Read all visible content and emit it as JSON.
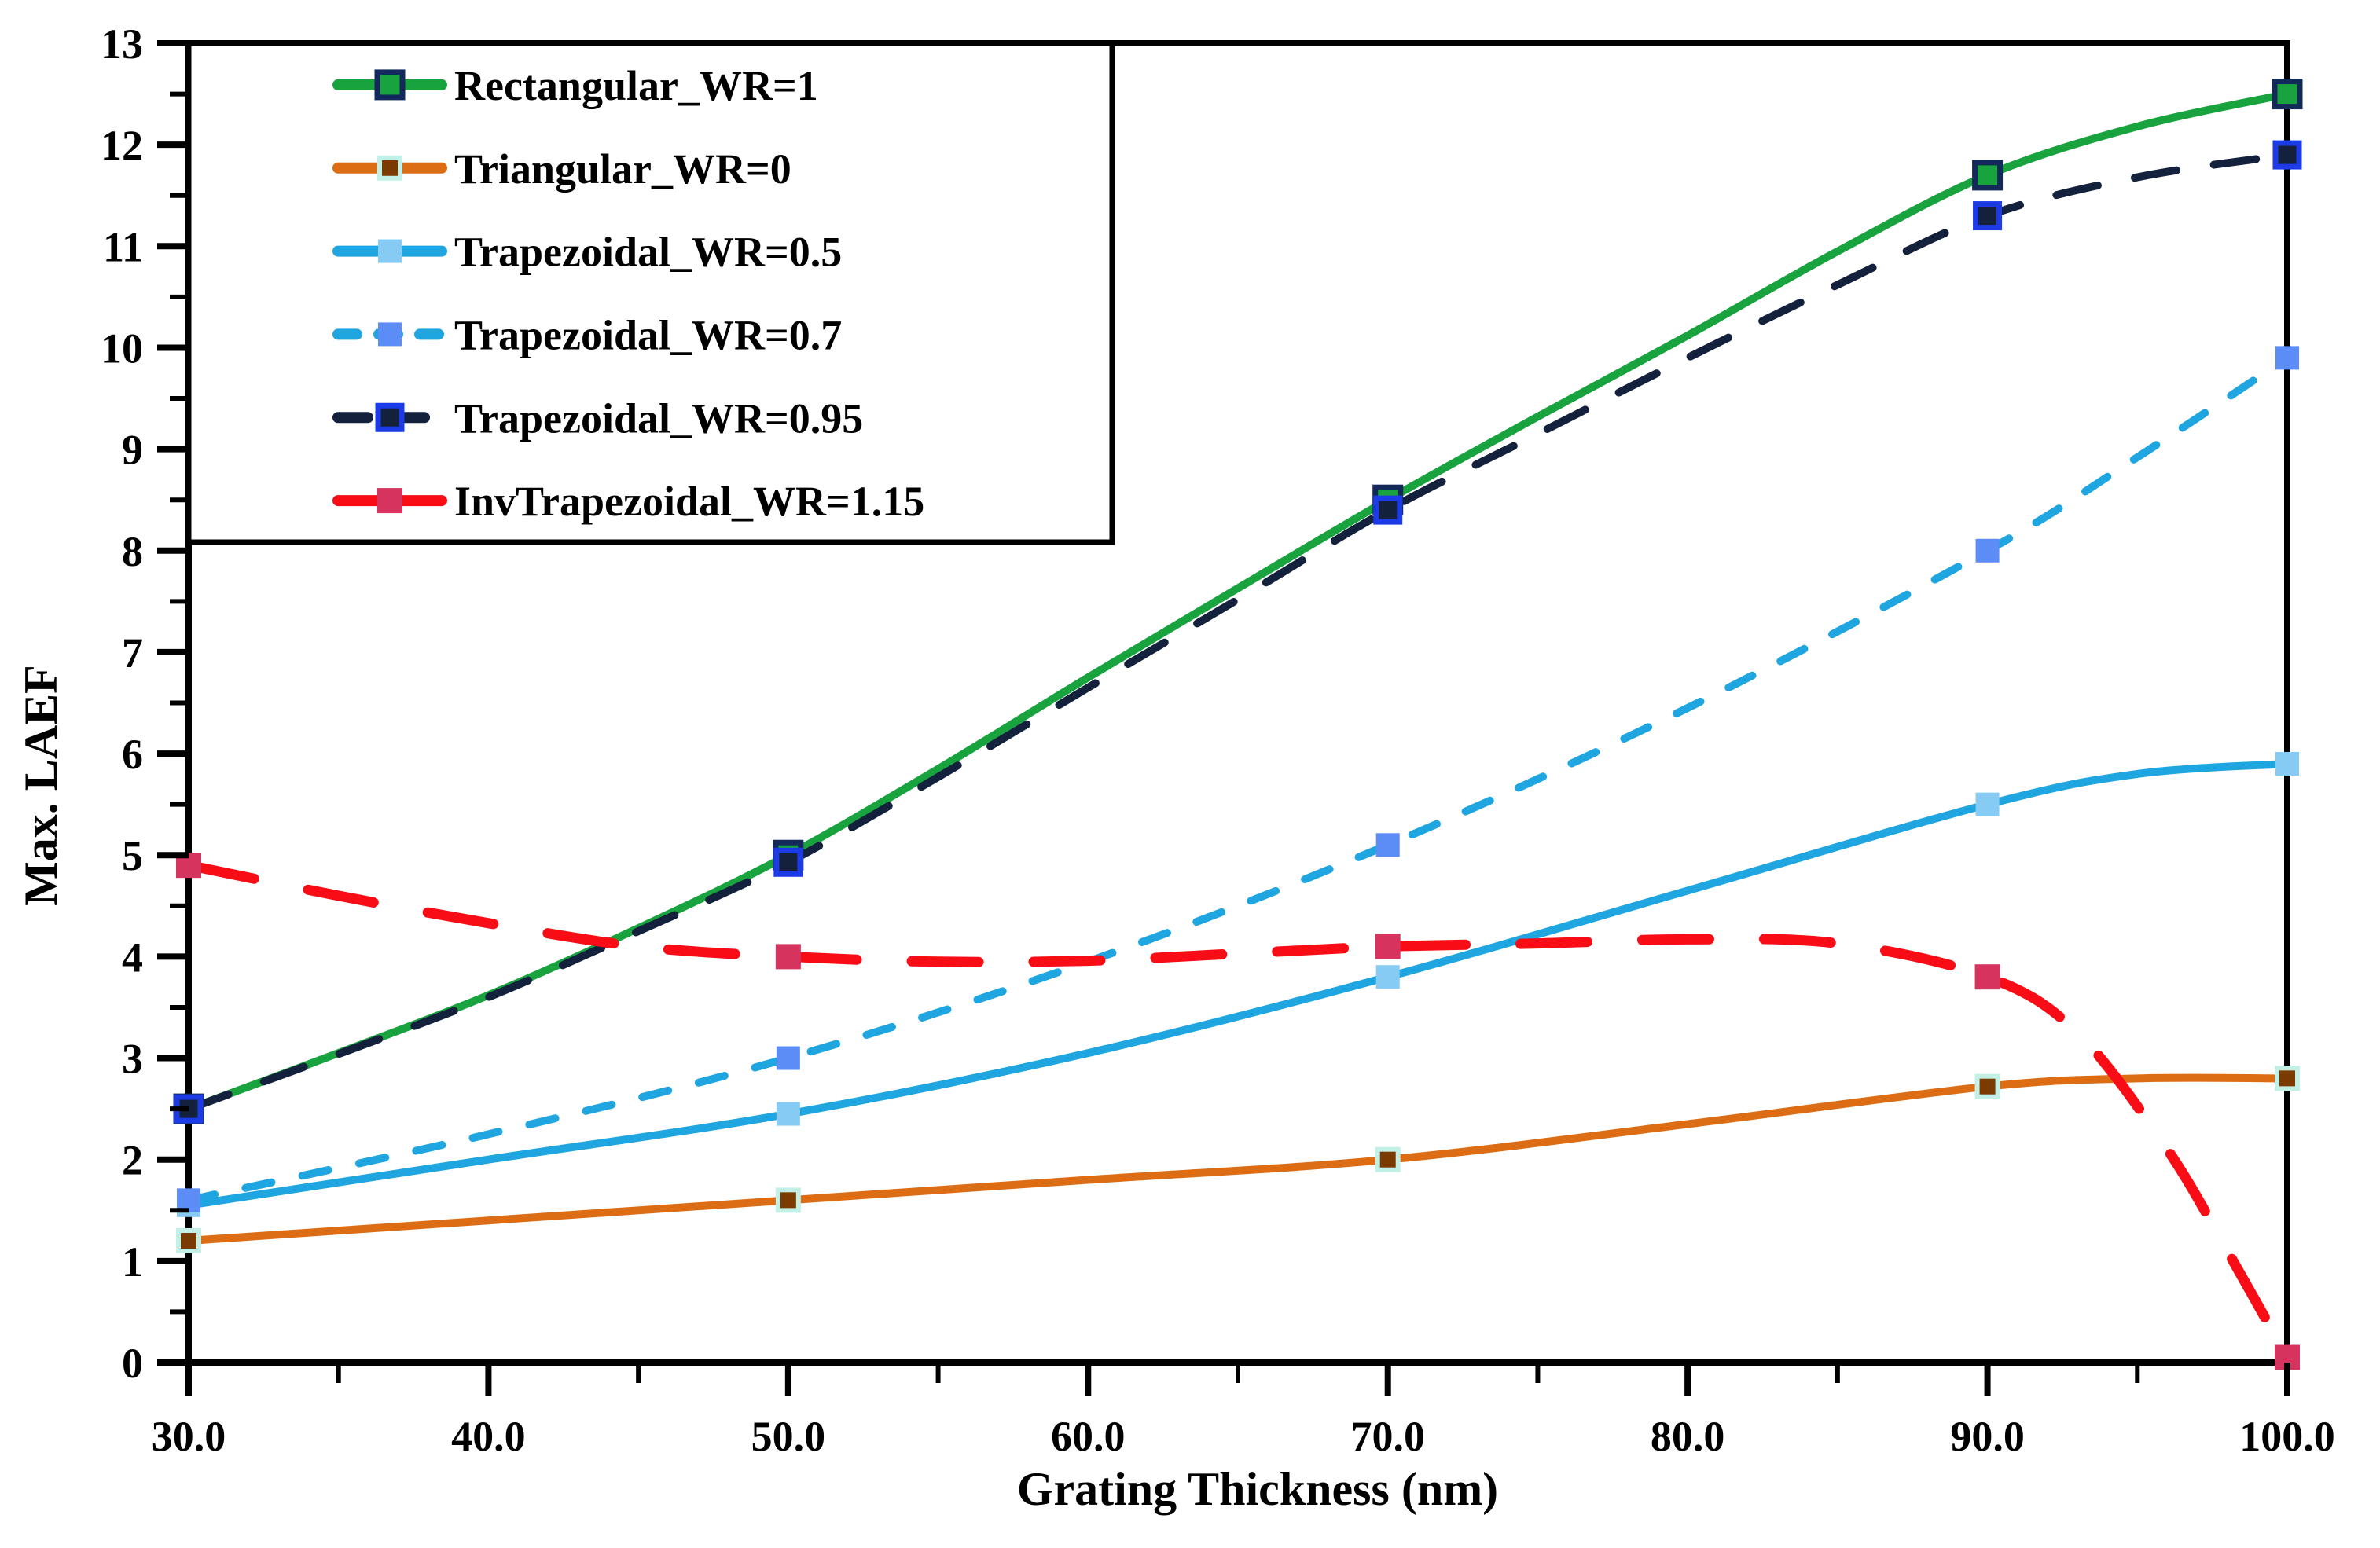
{
  "chart_data": {
    "type": "line",
    "title": "",
    "xlabel": "Grating Thickness  (nm)",
    "ylabel": "Max. LAEF",
    "xlim": [
      30,
      100
    ],
    "ylim": [
      0,
      13
    ],
    "x_ticks": [
      30,
      40,
      50,
      60,
      70,
      80,
      90,
      100
    ],
    "x_tick_labels": [
      "30.0",
      "40.0",
      "50.0",
      "60.0",
      "70.0",
      "80.0",
      "90.0",
      "100.0"
    ],
    "x_minor_ticks": [
      35,
      45,
      55,
      65,
      75,
      85,
      95
    ],
    "y_ticks": [
      0,
      1,
      2,
      3,
      4,
      5,
      6,
      7,
      8,
      9,
      10,
      11,
      12,
      13
    ],
    "y_tick_labels": [
      "0",
      "1",
      "2",
      "3",
      "4",
      "5",
      "6",
      "7",
      "8",
      "9",
      "10",
      "11",
      "12",
      "13"
    ],
    "y_minor_ticks": [
      0.5,
      1.5,
      2.5,
      3.5,
      4.5,
      5.5,
      6.5,
      7.5,
      8.5,
      9.5,
      10.5,
      11.5,
      12.5
    ],
    "grid": false,
    "legend_position": "top-left",
    "background_color": "#ffffff",
    "axis_color": "#000000",
    "series": [
      {
        "name": "Rectangular_WR=1",
        "line_style": "solid",
        "color": "#18a33e",
        "line_width": 10,
        "dash": null,
        "legend_dash": null,
        "marker": {
          "shape": "square",
          "size": 32,
          "fill": "#18a33e",
          "stroke": "#13295a",
          "stroke_width": 7
        },
        "marker_x": [
          30,
          50,
          70,
          90,
          100
        ],
        "points": [
          [
            30,
            2.5
          ],
          [
            35,
            3.05
          ],
          [
            40,
            3.62
          ],
          [
            45,
            4.28
          ],
          [
            50,
            5.0
          ],
          [
            55,
            5.85
          ],
          [
            60,
            6.75
          ],
          [
            65,
            7.63
          ],
          [
            70,
            8.5
          ],
          [
            75,
            9.32
          ],
          [
            80,
            10.12
          ],
          [
            85,
            10.95
          ],
          [
            90,
            11.7
          ],
          [
            95,
            12.18
          ],
          [
            100,
            12.5
          ]
        ]
      },
      {
        "name": "Triangular_WR=0",
        "line_style": "solid",
        "color": "#dd6d15",
        "line_width": 10,
        "dash": null,
        "legend_dash": null,
        "marker": {
          "shape": "square",
          "size": 26,
          "fill": "#7b3a00",
          "stroke": "#c2f0e6",
          "stroke_width": 6
        },
        "marker_x": [
          30,
          50,
          70,
          90,
          100
        ],
        "points": [
          [
            30,
            1.2
          ],
          [
            40,
            1.4
          ],
          [
            50,
            1.6
          ],
          [
            60,
            1.8
          ],
          [
            70,
            2.0
          ],
          [
            80,
            2.35
          ],
          [
            90,
            2.72
          ],
          [
            95,
            2.8
          ],
          [
            100,
            2.8
          ]
        ]
      },
      {
        "name": "Trapezoidal_WR=0.5",
        "line_style": "solid",
        "color": "#1fa6e0",
        "line_width": 10,
        "dash": null,
        "legend_dash": null,
        "marker": {
          "shape": "square",
          "size": 30,
          "fill": "#86cbf3",
          "stroke": "none",
          "stroke_width": 0
        },
        "marker_x": [
          30,
          50,
          70,
          90,
          100
        ],
        "points": [
          [
            30,
            1.55
          ],
          [
            40,
            2.0
          ],
          [
            50,
            2.45
          ],
          [
            60,
            3.05
          ],
          [
            70,
            3.8
          ],
          [
            80,
            4.65
          ],
          [
            90,
            5.5
          ],
          [
            95,
            5.8
          ],
          [
            100,
            5.9
          ]
        ]
      },
      {
        "name": "Trapezoidal_WR=0.7",
        "line_style": "dashed-short",
        "color": "#1fa6e0",
        "line_width": 10,
        "dash": "34 40",
        "legend_dash": "24 28",
        "marker": {
          "shape": "square",
          "size": 30,
          "fill": "#5c8cf5",
          "stroke": "none",
          "stroke_width": 0
        },
        "marker_x": [
          30,
          50,
          70,
          90,
          100
        ],
        "points": [
          [
            30,
            1.6
          ],
          [
            40,
            2.25
          ],
          [
            50,
            3.0
          ],
          [
            60,
            3.95
          ],
          [
            70,
            5.1
          ],
          [
            80,
            6.45
          ],
          [
            90,
            8.0
          ],
          [
            95,
            8.92
          ],
          [
            100,
            9.9
          ]
        ]
      },
      {
        "name": "Trapezoidal_WR=0.95",
        "line_style": "dashed-long",
        "color": "#14213c",
        "line_width": 10,
        "dash": "54 48",
        "legend_dash": "38 34",
        "marker": {
          "shape": "square",
          "size": 30,
          "fill": "#14213c",
          "stroke": "#1c3be6",
          "stroke_width": 7
        },
        "marker_x": [
          30,
          50,
          70,
          90,
          100
        ],
        "points": [
          [
            30,
            2.5
          ],
          [
            35,
            3.04
          ],
          [
            40,
            3.6
          ],
          [
            45,
            4.25
          ],
          [
            50,
            4.93
          ],
          [
            55,
            5.77
          ],
          [
            60,
            6.65
          ],
          [
            65,
            7.52
          ],
          [
            70,
            8.4
          ],
          [
            75,
            9.15
          ],
          [
            80,
            9.9
          ],
          [
            85,
            10.62
          ],
          [
            90,
            11.3
          ],
          [
            95,
            11.68
          ],
          [
            100,
            11.9
          ]
        ]
      },
      {
        "name": "InvTrapezoidal_WR=1.15",
        "line_style": "dashed-long",
        "color": "#f80d17",
        "line_width": 13,
        "dash": "85 70",
        "legend_dash": null,
        "marker": {
          "shape": "square",
          "size": 32,
          "fill": "#d6335f",
          "stroke": "none",
          "stroke_width": 0
        },
        "marker_x": [
          30,
          50,
          70,
          90,
          100
        ],
        "points": [
          [
            30,
            4.9
          ],
          [
            35,
            4.6
          ],
          [
            40,
            4.33
          ],
          [
            45,
            4.1
          ],
          [
            50,
            4.0
          ],
          [
            55,
            3.95
          ],
          [
            60,
            3.96
          ],
          [
            65,
            4.03
          ],
          [
            70,
            4.1
          ],
          [
            75,
            4.13
          ],
          [
            80,
            4.17
          ],
          [
            85,
            4.13
          ],
          [
            90,
            3.8
          ],
          [
            93,
            3.25
          ],
          [
            96,
            2.1
          ],
          [
            98,
            1.1
          ],
          [
            100,
            0.05
          ]
        ]
      }
    ]
  },
  "layout_note": "markers drawn at marker_x positions only; legend box flush with plot top-left corner"
}
